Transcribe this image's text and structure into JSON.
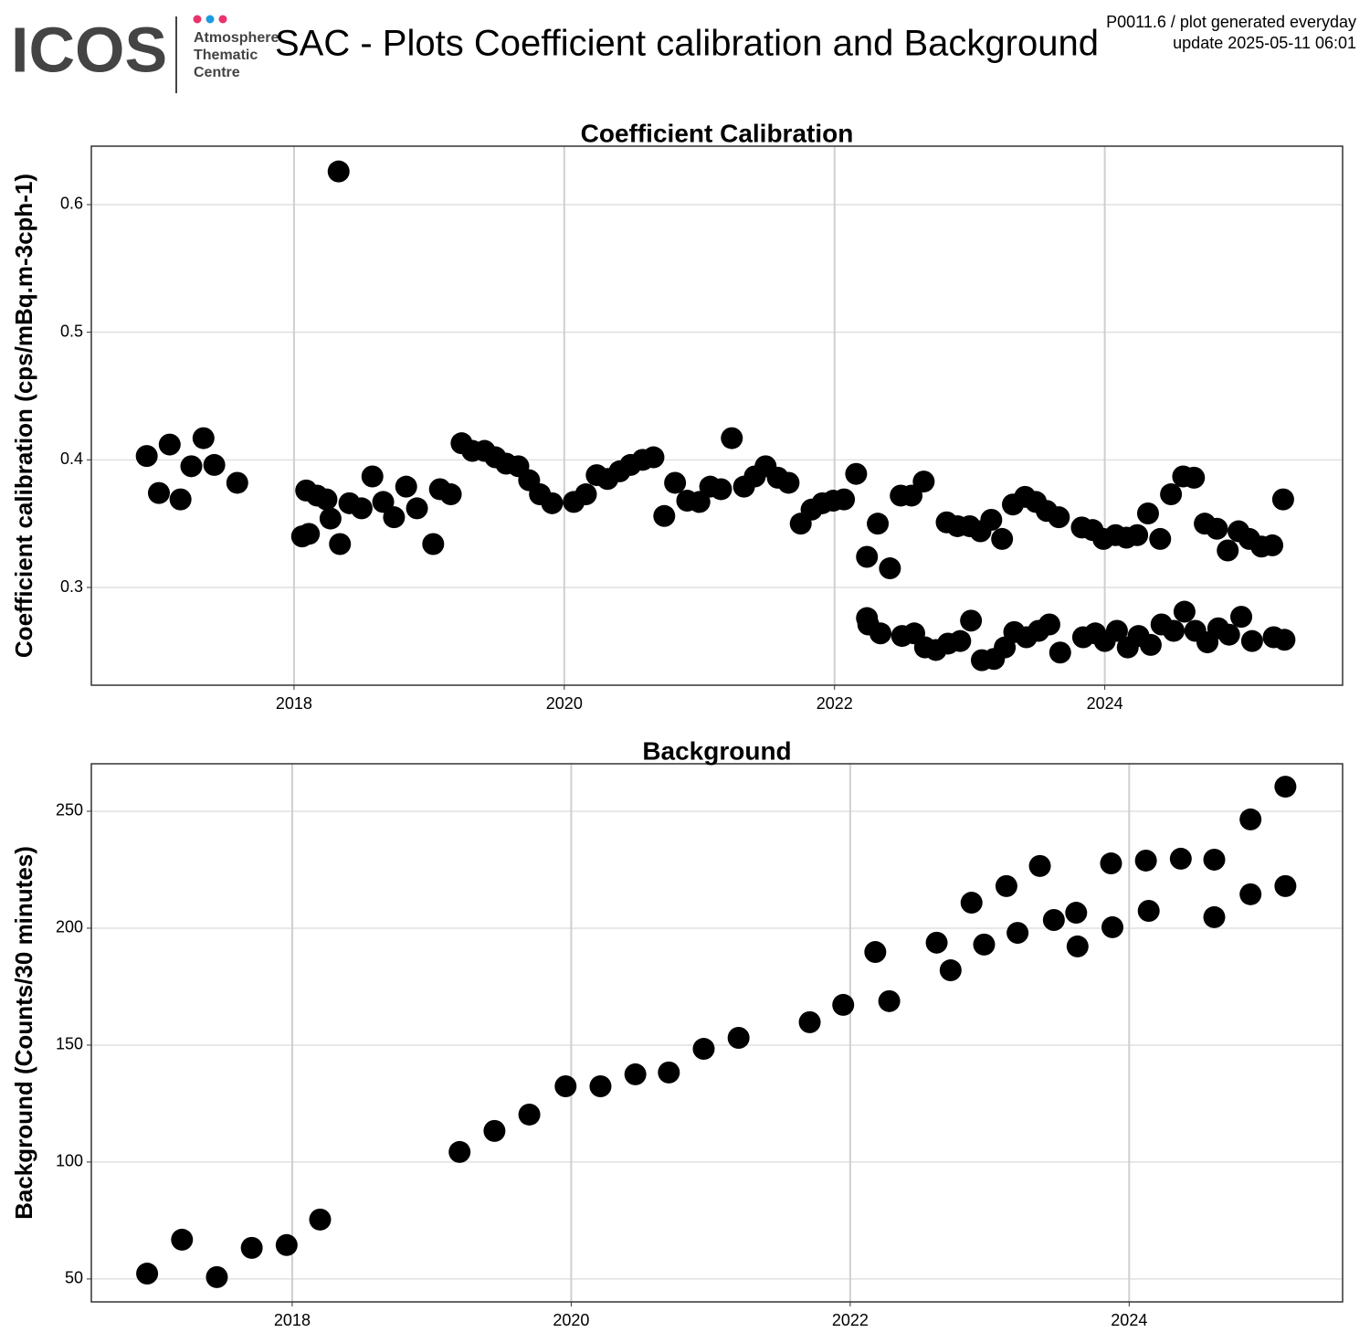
{
  "header": {
    "logo": "ICOS",
    "logo_lines": [
      "Atmosphere",
      "Thematic",
      "Centre"
    ],
    "title": "SAC - Plots Coefficient calibration and Background",
    "info": [
      "P0011.6 / plot generated everyday",
      "update  2025-05-11 06:01"
    ]
  },
  "chart_data": [
    {
      "type": "scatter",
      "title": "Coefficient Calibration",
      "y_label": "Coefficient calibration (cps/mBq.m-3cph-1)",
      "color": "#000000",
      "grid": true,
      "xlim": [
        2016.5,
        2025.76
      ],
      "xticks": [
        2018,
        2020,
        2022,
        2024
      ],
      "ylim": [
        0.2234,
        0.6458
      ],
      "yticks": [
        0.3,
        0.4,
        0.5,
        0.6
      ],
      "x": [
        2016.91,
        2017.0,
        2017.08,
        2017.16,
        2017.24,
        2017.33,
        2017.41,
        2017.58,
        2018.06,
        2018.11,
        2018.09,
        2018.17,
        2018.24,
        2018.27,
        2018.33,
        2018.34,
        2018.41,
        2018.5,
        2018.58,
        2018.66,
        2018.74,
        2018.83,
        2018.91,
        2019.03,
        2019.08,
        2019.16,
        2019.24,
        2019.32,
        2019.41,
        2019.49,
        2019.57,
        2019.66,
        2019.74,
        2019.82,
        2019.91,
        2020.07,
        2020.16,
        2020.24,
        2020.32,
        2020.41,
        2020.49,
        2020.58,
        2020.66,
        2020.74,
        2020.82,
        2020.91,
        2021.0,
        2021.08,
        2021.16,
        2021.24,
        2021.33,
        2021.41,
        2021.49,
        2021.58,
        2021.66,
        2021.75,
        2021.83,
        2021.91,
        2021.99,
        2022.07,
        2022.16,
        2022.24,
        2022.24,
        2022.25,
        2022.32,
        2022.34,
        2022.41,
        2022.49,
        2022.5,
        2022.57,
        2022.59,
        2022.66,
        2022.67,
        2022.75,
        2022.83,
        2022.84,
        2022.91,
        2022.93,
        2023.0,
        2023.01,
        2023.08,
        2023.09,
        2023.16,
        2023.18,
        2023.24,
        2023.26,
        2023.32,
        2023.33,
        2023.41,
        2023.42,
        2023.49,
        2023.51,
        2023.57,
        2023.59,
        2023.66,
        2023.67,
        2023.83,
        2023.84,
        2023.91,
        2023.93,
        2023.99,
        2024.0,
        2024.08,
        2024.09,
        2024.16,
        2024.17,
        2024.24,
        2024.25,
        2024.32,
        2024.34,
        2024.41,
        2024.42,
        2024.49,
        2024.51,
        2024.58,
        2024.59,
        2024.66,
        2024.67,
        2024.74,
        2024.76,
        2024.83,
        2024.84,
        2024.91,
        2024.92,
        2024.99,
        2025.01,
        2025.07,
        2025.09,
        2025.16,
        2025.24,
        2025.25,
        2025.33,
        2025.32
      ],
      "values": [
        0.403,
        0.374,
        0.412,
        0.369,
        0.395,
        0.417,
        0.396,
        0.382,
        0.34,
        0.342,
        0.376,
        0.372,
        0.369,
        0.354,
        0.626,
        0.334,
        0.366,
        0.362,
        0.387,
        0.367,
        0.355,
        0.379,
        0.362,
        0.334,
        0.377,
        0.373,
        0.413,
        0.407,
        0.407,
        0.402,
        0.397,
        0.395,
        0.384,
        0.373,
        0.366,
        0.367,
        0.373,
        0.388,
        0.385,
        0.391,
        0.396,
        0.4,
        0.402,
        0.356,
        0.382,
        0.368,
        0.367,
        0.379,
        0.377,
        0.417,
        0.379,
        0.387,
        0.395,
        0.386,
        0.382,
        0.35,
        0.361,
        0.366,
        0.368,
        0.369,
        0.389,
        0.324,
        0.276,
        0.271,
        0.35,
        0.264,
        0.315,
        0.372,
        0.262,
        0.372,
        0.264,
        0.383,
        0.253,
        0.251,
        0.351,
        0.256,
        0.348,
        0.258,
        0.348,
        0.274,
        0.344,
        0.243,
        0.353,
        0.244,
        0.338,
        0.253,
        0.365,
        0.265,
        0.371,
        0.261,
        0.367,
        0.266,
        0.36,
        0.271,
        0.355,
        0.249,
        0.347,
        0.261,
        0.345,
        0.264,
        0.338,
        0.258,
        0.341,
        0.266,
        0.339,
        0.253,
        0.341,
        0.262,
        0.358,
        0.255,
        0.338,
        0.271,
        0.373,
        0.266,
        0.387,
        0.281,
        0.386,
        0.266,
        0.35,
        0.257,
        0.346,
        0.268,
        0.329,
        0.263,
        0.344,
        0.277,
        0.338,
        0.258,
        0.332,
        0.333,
        0.261,
        0.259,
        0.369
      ]
    },
    {
      "type": "scatter",
      "title": "Background",
      "y_label": "Background (Counts/30 minutes)",
      "color": "#000000",
      "grid": true,
      "xlim": [
        2016.56,
        2025.53
      ],
      "xticks": [
        2018,
        2020,
        2022,
        2024
      ],
      "ylim": [
        40.2,
        270.3
      ],
      "yticks": [
        50,
        100,
        150,
        200,
        250
      ],
      "x": [
        2016.96,
        2017.21,
        2017.46,
        2017.71,
        2017.96,
        2018.2,
        2019.2,
        2019.45,
        2019.7,
        2019.96,
        2020.21,
        2020.46,
        2020.7,
        2020.95,
        2021.2,
        2021.71,
        2021.95,
        2022.18,
        2022.28,
        2022.62,
        2022.72,
        2022.87,
        2022.96,
        2023.12,
        2023.2,
        2023.36,
        2023.46,
        2023.62,
        2023.63,
        2023.87,
        2023.88,
        2024.12,
        2024.14,
        2024.37,
        2024.61,
        2024.61,
        2024.87,
        2024.87,
        2025.12,
        2025.12
      ],
      "values": [
        52.3,
        66.8,
        50.8,
        63.3,
        64.5,
        75.4,
        104.3,
        113.3,
        120.3,
        132.4,
        132.4,
        137.5,
        138.3,
        148.4,
        153.1,
        159.8,
        167.2,
        189.8,
        168.8,
        193.8,
        182.0,
        210.9,
        193.0,
        218.0,
        198.0,
        226.6,
        203.5,
        206.6,
        192.2,
        227.7,
        200.4,
        228.9,
        207.4,
        229.7,
        229.3,
        204.7,
        246.5,
        214.5,
        260.5,
        218.0
      ]
    }
  ]
}
